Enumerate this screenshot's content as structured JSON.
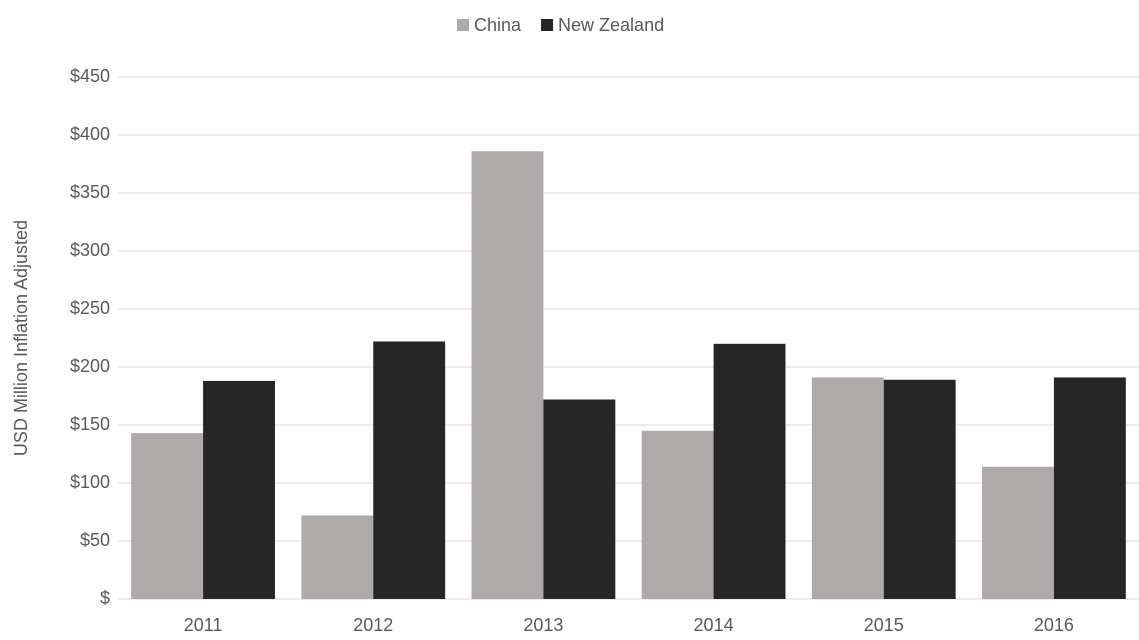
{
  "chart_data": {
    "type": "bar",
    "y_label": "USD Million Inflation Adjusted",
    "categories": [
      "2011",
      "2012",
      "2013",
      "2014",
      "2015",
      "2016"
    ],
    "series": [
      {
        "name": "China",
        "color": "#aeaaaa",
        "values": [
          143,
          72,
          386,
          145,
          191,
          114
        ]
      },
      {
        "name": "New Zealand",
        "color": "#262626",
        "values": [
          188,
          222,
          172,
          220,
          189,
          191
        ]
      }
    ],
    "ylim": [
      0,
      450
    ],
    "yticks": [
      {
        "value": 0,
        "label": "$"
      },
      {
        "value": 50,
        "label": "$50"
      },
      {
        "value": 100,
        "label": "$100"
      },
      {
        "value": 150,
        "label": "$150"
      },
      {
        "value": 200,
        "label": "$200"
      },
      {
        "value": 250,
        "label": "$250"
      },
      {
        "value": 300,
        "label": "$300"
      },
      {
        "value": 350,
        "label": "$350"
      },
      {
        "value": 400,
        "label": "$400"
      },
      {
        "value": 450,
        "label": "$450"
      }
    ],
    "grid": true,
    "legend": "top"
  }
}
